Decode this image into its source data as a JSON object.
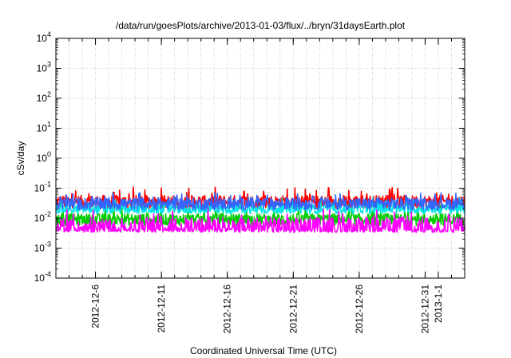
{
  "chart_data": {
    "type": "line",
    "title": "/data/run/goesPlots/archive/2013-01-03/flux/../bryn/31daysEarth.plot",
    "xlabel": "Coordinated Universal Time (UTC)",
    "ylabel": "cSv/day",
    "yscale": "log",
    "ylim": [
      0.0001,
      10000
    ],
    "xlim": [
      "2012-12-03T00:00",
      "2013-01-03T00:00"
    ],
    "grid": true,
    "y_ticks": [
      {
        "base": "10",
        "exp": "-4",
        "value": 0.0001
      },
      {
        "base": "10",
        "exp": "-3",
        "value": 0.001
      },
      {
        "base": "10",
        "exp": "-2",
        "value": 0.01
      },
      {
        "base": "10",
        "exp": "-1",
        "value": 0.1
      },
      {
        "base": "10",
        "exp": "0",
        "value": 1
      },
      {
        "base": "10",
        "exp": "1",
        "value": 10
      },
      {
        "base": "10",
        "exp": "2",
        "value": 100
      },
      {
        "base": "10",
        "exp": "3",
        "value": 1000
      },
      {
        "base": "10",
        "exp": "4",
        "value": 10000
      }
    ],
    "x_ticks": [
      {
        "label": "2012-12-6",
        "date": "2012-12-06"
      },
      {
        "label": "2012-12-11",
        "date": "2012-12-11"
      },
      {
        "label": "2012-12-16",
        "date": "2012-12-16"
      },
      {
        "label": "2012-12-21",
        "date": "2012-12-21"
      },
      {
        "label": "2012-12-26",
        "date": "2012-12-26"
      },
      {
        "label": "2012-12-31",
        "date": "2012-12-31"
      },
      {
        "label": "2013-1-1",
        "date": "2013-01-01"
      }
    ],
    "series": [
      {
        "color": "#ff0000",
        "typical": 0.035,
        "spread": 0.22,
        "peak": 0.11
      },
      {
        "color": "#00cc00",
        "typical": 0.009,
        "spread": 0.2,
        "peak": 0.03
      },
      {
        "color": "#00e5e5",
        "typical": 0.02,
        "spread": 0.15,
        "peak": 0.05
      },
      {
        "color": "#3366ff",
        "typical": 0.03,
        "spread": 0.2,
        "peak": 0.07
      },
      {
        "color": "#ff00ff",
        "typical": 0.006,
        "spread": 0.25,
        "peak": 0.02
      }
    ]
  }
}
